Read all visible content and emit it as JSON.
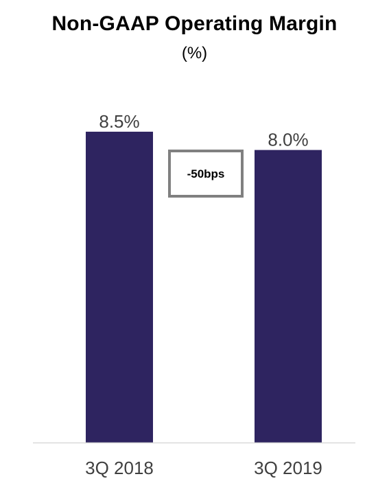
{
  "chart_data": {
    "type": "bar",
    "title": "Non-GAAP Operating Margin",
    "subtitle": "(%)",
    "categories": [
      "3Q 2018",
      "3Q 2019"
    ],
    "values": [
      8.5,
      8.0
    ],
    "data_labels": [
      "8.5%",
      "8.0%"
    ],
    "ylim": [
      0,
      10
    ],
    "grid": false,
    "legend": "none",
    "annotation": "-50bps",
    "colors": {
      "bar": "#2e2460",
      "axis": "#d9d9d9",
      "callout_border": "#808080",
      "label": "#404040"
    }
  }
}
